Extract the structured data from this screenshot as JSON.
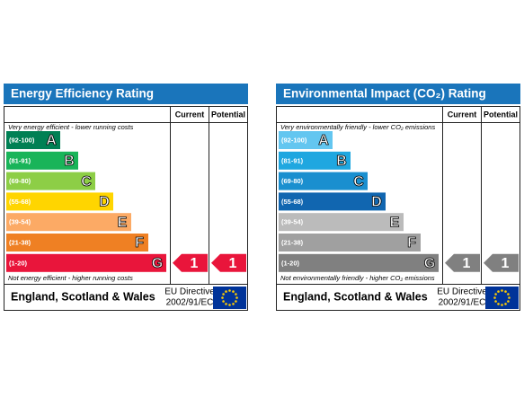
{
  "panels": [
    {
      "title": "Energy Efficiency Rating",
      "header": {
        "current": "Current",
        "potential": "Potential"
      },
      "top_note": "Very energy efficient - lower running costs",
      "bottom_note": "Not energy efficient - higher running costs",
      "bands": [
        {
          "range": "(92-100)",
          "letter": "A",
          "color": "#008054"
        },
        {
          "range": "(81-91)",
          "letter": "B",
          "color": "#19b459"
        },
        {
          "range": "(69-80)",
          "letter": "C",
          "color": "#8dce46"
        },
        {
          "range": "(55-68)",
          "letter": "D",
          "color": "#ffd500"
        },
        {
          "range": "(39-54)",
          "letter": "E",
          "color": "#fcaa65"
        },
        {
          "range": "(21-38)",
          "letter": "F",
          "color": "#ef8023"
        },
        {
          "range": "(1-20)",
          "letter": "G",
          "color": "#e9153b"
        }
      ],
      "current": 1,
      "potential": 1,
      "arrow_color": "#e9153b",
      "footer": {
        "region": "England, Scotland & Wales",
        "directive_1": "EU Directive",
        "directive_2": "2002/91/EC"
      }
    },
    {
      "title": "Environmental Impact (CO₂) Rating",
      "header": {
        "current": "Current",
        "potential": "Potential"
      },
      "top_note": "Very environmentally friendly - lower CO₂ emissions",
      "bottom_note": "Not environmentally friendly - higher CO₂ emissions",
      "bands": [
        {
          "range": "(92-100)",
          "letter": "A",
          "color": "#63c6f0"
        },
        {
          "range": "(81-91)",
          "letter": "B",
          "color": "#1fa7e0"
        },
        {
          "range": "(69-80)",
          "letter": "C",
          "color": "#1a8fcf"
        },
        {
          "range": "(55-68)",
          "letter": "D",
          "color": "#1166b0"
        },
        {
          "range": "(39-54)",
          "letter": "E",
          "color": "#bbbbbb"
        },
        {
          "range": "(21-38)",
          "letter": "F",
          "color": "#a0a0a0"
        },
        {
          "range": "(1-20)",
          "letter": "G",
          "color": "#808080"
        }
      ],
      "current": 1,
      "potential": 1,
      "arrow_color": "#808080",
      "footer": {
        "region": "England, Scotland & Wales",
        "directive_1": "EU Directive",
        "directive_2": "2002/91/EC"
      }
    }
  ]
}
